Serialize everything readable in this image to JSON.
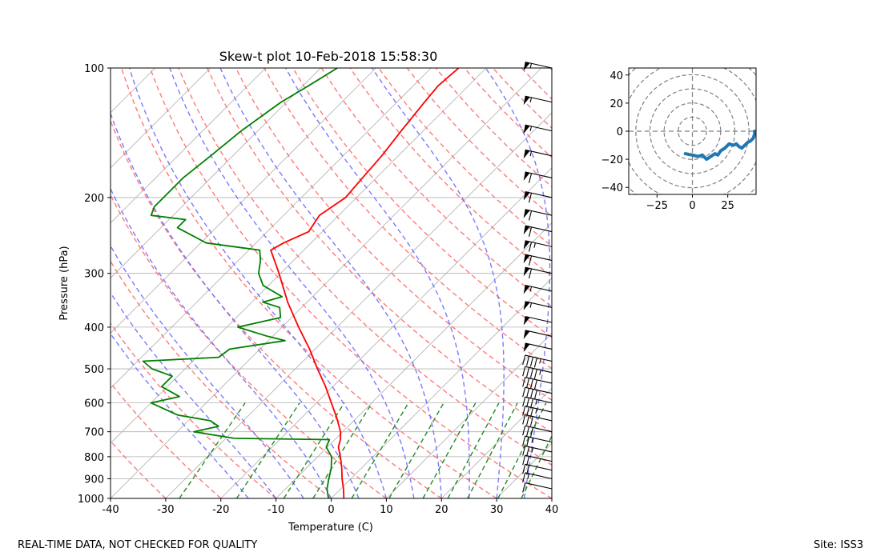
{
  "chart_data": [
    {
      "type": "skew-t",
      "title": "Skew-t plot 10-Feb-2018 15:58:30",
      "xlabel": "Temperature (C)",
      "ylabel": "Pressure (hPa)",
      "xlim": [
        -40,
        40
      ],
      "ylim": [
        1000,
        100
      ],
      "x_ticks": [
        -40,
        -30,
        -20,
        -10,
        0,
        10,
        20,
        30,
        40
      ],
      "y_ticks": [
        100,
        200,
        300,
        400,
        500,
        600,
        700,
        800,
        900,
        1000
      ],
      "grid": true,
      "colors": {
        "temperature": "#ff0000",
        "dewpoint": "#008000",
        "dry_adiabats": "#ff6b6b",
        "moist_adiabats": "#6b6bff",
        "mixing_ratio": "#228b22",
        "isotherms": "#b0b0b0"
      },
      "series": [
        {
          "name": "Temperature",
          "points": [
            {
              "p": 1000,
              "t": 2.3
            },
            {
              "p": 950,
              "t": 0.5
            },
            {
              "p": 900,
              "t": -1.6
            },
            {
              "p": 850,
              "t": -3.6
            },
            {
              "p": 800,
              "t": -5.9
            },
            {
              "p": 760,
              "t": -8.0
            },
            {
              "p": 730,
              "t": -9.0
            },
            {
              "p": 700,
              "t": -10.4
            },
            {
              "p": 650,
              "t": -13.6
            },
            {
              "p": 600,
              "t": -17.3
            },
            {
              "p": 550,
              "t": -21.3
            },
            {
              "p": 500,
              "t": -26.0
            },
            {
              "p": 450,
              "t": -31.0
            },
            {
              "p": 400,
              "t": -37.0
            },
            {
              "p": 350,
              "t": -43.5
            },
            {
              "p": 300,
              "t": -50.3
            },
            {
              "p": 265,
              "t": -56.0
            },
            {
              "p": 255,
              "t": -55.0
            },
            {
              "p": 240,
              "t": -52.5
            },
            {
              "p": 220,
              "t": -53.5
            },
            {
              "p": 200,
              "t": -52.0
            },
            {
              "p": 180,
              "t": -52.5
            },
            {
              "p": 160,
              "t": -53.0
            },
            {
              "p": 140,
              "t": -54.0
            },
            {
              "p": 120,
              "t": -55.0
            },
            {
              "p": 110,
              "t": -55.5
            },
            {
              "p": 100,
              "t": -55.0
            }
          ]
        },
        {
          "name": "Dewpoint",
          "points": [
            {
              "p": 1000,
              "t": -0.5
            },
            {
              "p": 950,
              "t": -2.5
            },
            {
              "p": 900,
              "t": -4.0
            },
            {
              "p": 850,
              "t": -5.5
            },
            {
              "p": 800,
              "t": -7.5
            },
            {
              "p": 760,
              "t": -10.2
            },
            {
              "p": 730,
              "t": -11.0
            },
            {
              "p": 725,
              "t": -28.5
            },
            {
              "p": 700,
              "t": -37.0
            },
            {
              "p": 680,
              "t": -33.5
            },
            {
              "p": 660,
              "t": -36.0
            },
            {
              "p": 640,
              "t": -43.0
            },
            {
              "p": 600,
              "t": -50.0
            },
            {
              "p": 580,
              "t": -46.0
            },
            {
              "p": 550,
              "t": -51.0
            },
            {
              "p": 520,
              "t": -51.0
            },
            {
              "p": 500,
              "t": -56.0
            },
            {
              "p": 480,
              "t": -59.0
            },
            {
              "p": 470,
              "t": -46.0
            },
            {
              "p": 450,
              "t": -45.5
            },
            {
              "p": 430,
              "t": -37.0
            },
            {
              "p": 420,
              "t": -41.0
            },
            {
              "p": 400,
              "t": -48.0
            },
            {
              "p": 380,
              "t": -42.0
            },
            {
              "p": 360,
              "t": -44.0
            },
            {
              "p": 350,
              "t": -48.0
            },
            {
              "p": 340,
              "t": -45.5
            },
            {
              "p": 320,
              "t": -51.0
            },
            {
              "p": 300,
              "t": -54.0
            },
            {
              "p": 280,
              "t": -56.0
            },
            {
              "p": 265,
              "t": -58.0
            },
            {
              "p": 255,
              "t": -69.0
            },
            {
              "p": 235,
              "t": -77.0
            },
            {
              "p": 225,
              "t": -77.0
            },
            {
              "p": 220,
              "t": -84.0
            },
            {
              "p": 210,
              "t": -85.0
            },
            {
              "p": 200,
              "t": -85.0
            },
            {
              "p": 180,
              "t": -85.0
            },
            {
              "p": 160,
              "t": -84.0
            },
            {
              "p": 140,
              "t": -83.0
            },
            {
              "p": 120,
              "t": -81.0
            },
            {
              "p": 110,
              "t": -79.0
            },
            {
              "p": 100,
              "t": -77.0
            }
          ]
        }
      ],
      "wind_barbs": [
        {
          "p": 100,
          "speed_kt": 55
        },
        {
          "p": 120,
          "speed_kt": 55
        },
        {
          "p": 140,
          "speed_kt": 55
        },
        {
          "p": 160,
          "speed_kt": 55
        },
        {
          "p": 180,
          "speed_kt": 60
        },
        {
          "p": 200,
          "speed_kt": 60
        },
        {
          "p": 220,
          "speed_kt": 60
        },
        {
          "p": 240,
          "speed_kt": 60
        },
        {
          "p": 260,
          "speed_kt": 65
        },
        {
          "p": 280,
          "speed_kt": 60
        },
        {
          "p": 300,
          "speed_kt": 60
        },
        {
          "p": 330,
          "speed_kt": 55
        },
        {
          "p": 360,
          "speed_kt": 55
        },
        {
          "p": 390,
          "speed_kt": 50
        },
        {
          "p": 420,
          "speed_kt": 50
        },
        {
          "p": 450,
          "speed_kt": 50
        },
        {
          "p": 480,
          "speed_kt": 45
        },
        {
          "p": 510,
          "speed_kt": 45
        },
        {
          "p": 540,
          "speed_kt": 40
        },
        {
          "p": 570,
          "speed_kt": 40
        },
        {
          "p": 600,
          "speed_kt": 35
        },
        {
          "p": 630,
          "speed_kt": 35
        },
        {
          "p": 660,
          "speed_kt": 30
        },
        {
          "p": 700,
          "speed_kt": 30
        },
        {
          "p": 740,
          "speed_kt": 25
        },
        {
          "p": 780,
          "speed_kt": 25
        },
        {
          "p": 820,
          "speed_kt": 20
        },
        {
          "p": 860,
          "speed_kt": 20
        },
        {
          "p": 900,
          "speed_kt": 15
        },
        {
          "p": 950,
          "speed_kt": 10
        }
      ]
    },
    {
      "type": "hodograph",
      "xlim": [
        -45,
        45
      ],
      "ylim": [
        -45,
        45
      ],
      "x_ticks": [
        -25,
        0,
        25
      ],
      "y_ticks": [
        -40,
        -20,
        0,
        20,
        40
      ],
      "ring_values": [
        10,
        20,
        30,
        40,
        50,
        60
      ],
      "trace_color": "#1f77b4",
      "points": [
        [
          -5,
          -16
        ],
        [
          0,
          -17
        ],
        [
          4,
          -18
        ],
        [
          7,
          -17
        ],
        [
          10,
          -20
        ],
        [
          13,
          -18
        ],
        [
          16,
          -16
        ],
        [
          18,
          -17
        ],
        [
          20,
          -14
        ],
        [
          23,
          -12
        ],
        [
          26,
          -9
        ],
        [
          29,
          -10
        ],
        [
          31,
          -9
        ],
        [
          33,
          -11
        ],
        [
          35,
          -12
        ],
        [
          37,
          -10
        ],
        [
          39,
          -8
        ],
        [
          41,
          -7
        ],
        [
          43,
          -5
        ],
        [
          44,
          -2
        ],
        [
          44,
          0
        ]
      ]
    }
  ],
  "footer": {
    "left": "REAL-TIME DATA, NOT CHECKED FOR QUALITY",
    "right": "Site: ISS3"
  }
}
